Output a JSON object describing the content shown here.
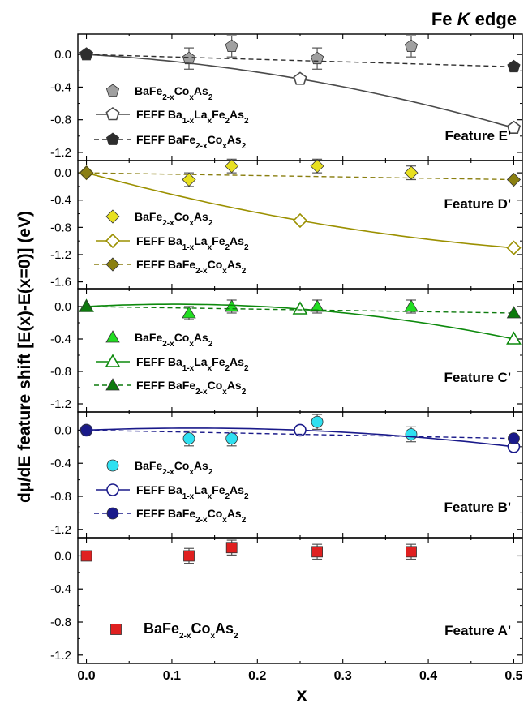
{
  "figure": {
    "title": "Fe K edge",
    "title_prefix": "Fe ",
    "title_italic": "K",
    "title_suffix": " edge",
    "ylabel": "dμ/dE feature shift [E(x)-E(x=0)] (eV)",
    "xlabel": "x"
  },
  "chart_data": [
    {
      "type": "scatter",
      "panel_label": "Feature E'",
      "ylim": [
        -1.3,
        0.25
      ],
      "yticks": [
        0.0,
        -0.4,
        -0.8,
        -1.2
      ],
      "ytick_labels": [
        "0.0",
        "-0.4",
        "-0.8",
        "-1.2"
      ],
      "xlim": [
        -0.01,
        0.51
      ],
      "colors": {
        "exp": "#a0a0a0",
        "feff_la": "#4a4a4a",
        "feff_co": "#2e2e2e"
      },
      "series": [
        {
          "name": "BaFe2-xCoxAs2",
          "name_parts": [
            "BaFe",
            "2-x",
            "Co",
            "x",
            "As",
            "2"
          ],
          "marker": "pentagon-filled",
          "x": [
            0,
            0.12,
            0.17,
            0.27,
            0.38
          ],
          "y": [
            0.0,
            -0.05,
            0.1,
            -0.05,
            0.1
          ],
          "err": [
            0.03,
            0.13,
            0.13,
            0.13,
            0.13
          ]
        },
        {
          "name": "FEFF Ba1-xLaxFe2As2",
          "name_parts": [
            "FEFF Ba",
            "1-x",
            "La",
            "x",
            "Fe",
            "2",
            "As",
            "2"
          ],
          "marker": "pentagon-open",
          "line": "solid",
          "x": [
            0,
            0.25,
            0.5
          ],
          "y": [
            0.0,
            -0.3,
            -0.9
          ]
        },
        {
          "name": "FEFF BaFe2-xCoxAs2",
          "name_parts": [
            "FEFF BaFe",
            "2-x",
            "Co",
            "x",
            "As",
            "2"
          ],
          "marker": "pentagon-filled",
          "line": "dashed",
          "x": [
            0,
            0.5
          ],
          "y": [
            0.0,
            -0.15
          ]
        }
      ]
    },
    {
      "type": "scatter",
      "panel_label": "Feature D'",
      "ylim": [
        -1.7,
        0.18
      ],
      "yticks": [
        0.0,
        -0.4,
        -0.8,
        -1.2,
        -1.6
      ],
      "ytick_labels": [
        "0.0",
        "-0.4",
        "-0.8",
        "-1.2",
        "-1.6"
      ],
      "xlim": [
        -0.01,
        0.51
      ],
      "colors": {
        "exp": "#e8e020",
        "feff_la": "#9b9000",
        "feff_co": "#8a7f10"
      },
      "series": [
        {
          "name": "BaFe2-xCoxAs2",
          "name_parts": [
            "BaFe",
            "2-x",
            "Co",
            "x",
            "As",
            "2"
          ],
          "marker": "diamond-filled",
          "x": [
            0,
            0.12,
            0.17,
            0.27,
            0.38
          ],
          "y": [
            0.0,
            -0.1,
            0.1,
            0.1,
            0.0
          ],
          "err": [
            0.03,
            0.1,
            0.1,
            0.1,
            0.1
          ]
        },
        {
          "name": "FEFF Ba1-xLaxFe2As2",
          "name_parts": [
            "FEFF Ba",
            "1-x",
            "La",
            "x",
            "Fe",
            "2",
            "As",
            "2"
          ],
          "marker": "diamond-open",
          "line": "solid",
          "x": [
            0,
            0.25,
            0.5
          ],
          "y": [
            0.0,
            -0.7,
            -1.1
          ]
        },
        {
          "name": "FEFF BaFe2-xCoxAs2",
          "name_parts": [
            "FEFF BaFe",
            "2-x",
            "Co",
            "x",
            "As",
            "2"
          ],
          "marker": "diamond-filled",
          "line": "dashed",
          "x": [
            0,
            0.5
          ],
          "y": [
            0.0,
            -0.1
          ]
        }
      ]
    },
    {
      "type": "scatter",
      "panel_label": "Feature C'",
      "ylim": [
        -1.3,
        0.22
      ],
      "yticks": [
        0.0,
        -0.4,
        -0.8,
        -1.2
      ],
      "ytick_labels": [
        "0.0",
        "-0.4",
        "-0.8",
        "-1.2"
      ],
      "xlim": [
        -0.01,
        0.51
      ],
      "colors": {
        "exp": "#22dd22",
        "feff_la": "#0d8a0d",
        "feff_co": "#0d7a0d"
      },
      "series": [
        {
          "name": "BaFe2-xCoxAs2",
          "name_parts": [
            "BaFe",
            "2-x",
            "Co",
            "x",
            "As",
            "2"
          ],
          "marker": "triangle-filled",
          "x": [
            0,
            0.12,
            0.17,
            0.27,
            0.38
          ],
          "y": [
            0.0,
            -0.08,
            0.0,
            0.0,
            0.0
          ],
          "err": [
            0.03,
            0.08,
            0.08,
            0.08,
            0.08
          ]
        },
        {
          "name": "FEFF Ba1-xLaxFe2As2",
          "name_parts": [
            "FEFF Ba",
            "1-x",
            "La",
            "x",
            "Fe",
            "2",
            "As",
            "2"
          ],
          "marker": "triangle-open",
          "line": "solid",
          "x": [
            0,
            0.25,
            0.5
          ],
          "y": [
            0.0,
            -0.03,
            -0.4
          ]
        },
        {
          "name": "FEFF BaFe2-xCoxAs2",
          "name_parts": [
            "FEFF BaFe",
            "2-x",
            "Co",
            "x",
            "As",
            "2"
          ],
          "marker": "triangle-filled",
          "line": "dashed",
          "x": [
            0,
            0.5
          ],
          "y": [
            0.0,
            -0.08
          ]
        }
      ]
    },
    {
      "type": "scatter",
      "panel_label": "Feature B'",
      "ylim": [
        -1.3,
        0.22
      ],
      "yticks": [
        0.0,
        -0.4,
        -0.8,
        -1.2
      ],
      "ytick_labels": [
        "0.0",
        "-0.4",
        "-0.8",
        "-1.2"
      ],
      "xlim": [
        -0.01,
        0.51
      ],
      "colors": {
        "exp": "#30e0f0",
        "feff_la": "#1a1a8a",
        "feff_co": "#1a1a8a"
      },
      "series": [
        {
          "name": "BaFe2-xCoxAs2",
          "name_parts": [
            "BaFe",
            "2-x",
            "Co",
            "x",
            "As",
            "2"
          ],
          "marker": "circle-filled",
          "x": [
            0,
            0.12,
            0.17,
            0.27,
            0.38
          ],
          "y": [
            0.0,
            -0.1,
            -0.1,
            0.1,
            -0.05
          ],
          "err": [
            0.03,
            0.09,
            0.09,
            0.09,
            0.09
          ]
        },
        {
          "name": "FEFF Ba1-xLaxFe2As2",
          "name_parts": [
            "FEFF Ba",
            "1-x",
            "La",
            "x",
            "Fe",
            "2",
            "As",
            "2"
          ],
          "marker": "circle-open",
          "line": "solid",
          "x": [
            0,
            0.25,
            0.5
          ],
          "y": [
            0.0,
            0.0,
            -0.2
          ]
        },
        {
          "name": "FEFF BaFe2-xCoxAs2",
          "name_parts": [
            "FEFF BaFe",
            "2-x",
            "Co",
            "x",
            "As",
            "2"
          ],
          "marker": "circle-filled",
          "line": "dashed",
          "x": [
            0,
            0.5
          ],
          "y": [
            0.0,
            -0.1
          ]
        }
      ]
    },
    {
      "type": "scatter",
      "panel_label": "Feature A'",
      "ylim": [
        -1.3,
        0.22
      ],
      "yticks": [
        0.0,
        -0.4,
        -0.8,
        -1.2
      ],
      "ytick_labels": [
        "0.0",
        "-0.4",
        "-0.8",
        "-1.2"
      ],
      "xlim": [
        -0.01,
        0.51
      ],
      "xticks": [
        0.0,
        0.1,
        0.2,
        0.3,
        0.4,
        0.5
      ],
      "xtick_labels": [
        "0.0",
        "0.1",
        "0.2",
        "0.3",
        "0.4",
        "0.5"
      ],
      "colors": {
        "exp": "#e02020"
      },
      "series": [
        {
          "name": "BaFe2-xCoxAs2",
          "name_parts": [
            "BaFe",
            "2-x",
            "Co",
            "x",
            "As",
            "2"
          ],
          "marker": "square-filled",
          "x": [
            0,
            0.12,
            0.17,
            0.27,
            0.38
          ],
          "y": [
            0.0,
            0.0,
            0.1,
            0.05,
            0.05
          ],
          "err": [
            0.03,
            0.09,
            0.09,
            0.09,
            0.09
          ]
        }
      ]
    }
  ]
}
